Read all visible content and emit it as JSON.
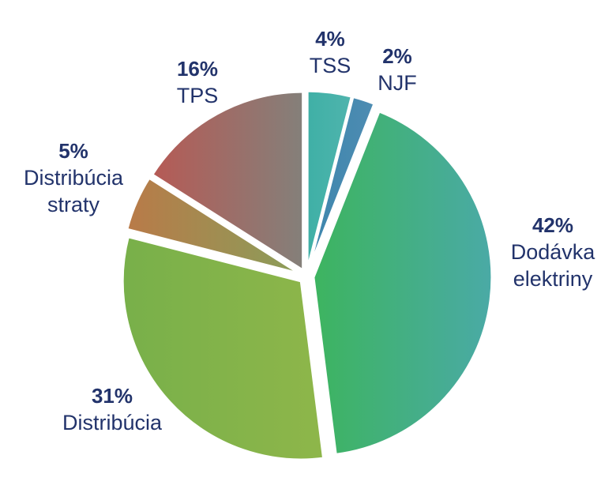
{
  "chart_data": {
    "type": "pie",
    "title": "",
    "label_color": "#22336b",
    "slices": [
      {
        "label": "TSS",
        "pct_label": "4%",
        "value": 4,
        "colors": [
          "#3fb0a6",
          "#4fb4ad"
        ]
      },
      {
        "label": "NJF",
        "pct_label": "2%",
        "value": 2,
        "colors": [
          "#3d86ad",
          "#4e8cb2"
        ]
      },
      {
        "label": "Dodávka elektriny",
        "pct_label": "42%",
        "value": 42,
        "colors": [
          "#3db45f",
          "#4aaaa6"
        ]
      },
      {
        "label": "Distribúcia",
        "pct_label": "31%",
        "value": 31,
        "colors": [
          "#78b04a",
          "#8eb64a"
        ]
      },
      {
        "label": "Distribúcia straty",
        "pct_label": "5%",
        "value": 5,
        "colors": [
          "#b97a48",
          "#8a9e5a"
        ]
      },
      {
        "label": "TPS",
        "pct_label": "16%",
        "value": 16,
        "colors": [
          "#b65a55",
          "#84807a"
        ]
      }
    ]
  }
}
